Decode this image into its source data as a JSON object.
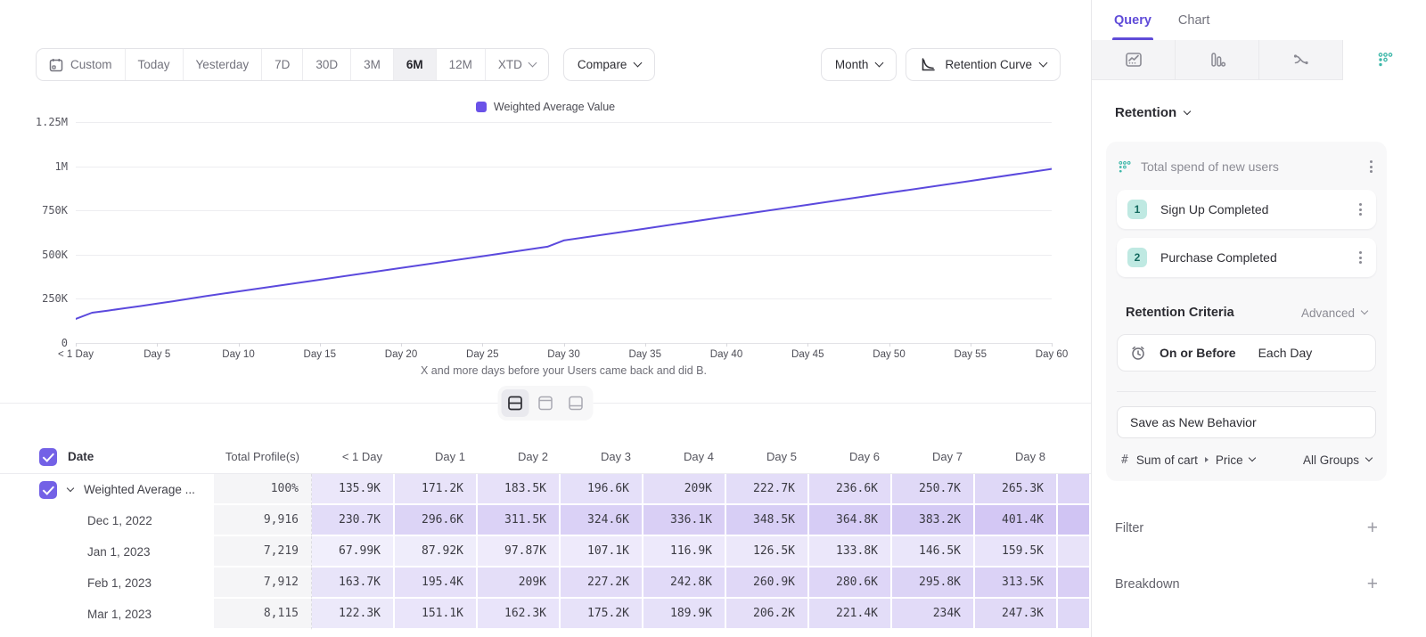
{
  "accent": "#6A52E8",
  "teal": "#3FB8AA",
  "toolbar": {
    "ranges": [
      "Custom",
      "Today",
      "Yesterday",
      "7D",
      "30D",
      "3M",
      "6M",
      "12M",
      "XTD"
    ],
    "active_range": "6M",
    "compare_label": "Compare",
    "granularity_label": "Month",
    "chart_type_label": "Retention Curve"
  },
  "chart_data": {
    "type": "line",
    "legend": [
      "Weighted Average Value"
    ],
    "series": [
      {
        "name": "Weighted Average Value",
        "color": "#5B49DD",
        "points": [
          [
            0,
            135900
          ],
          [
            1,
            171200
          ],
          [
            2,
            183500
          ],
          [
            3,
            196600
          ],
          [
            4,
            209000
          ],
          [
            5,
            222700
          ],
          [
            6,
            236600
          ],
          [
            7,
            250700
          ],
          [
            8,
            265300
          ],
          [
            10,
            292000
          ],
          [
            15,
            358000
          ],
          [
            20,
            425000
          ],
          [
            25,
            491000
          ],
          [
            29,
            545000
          ],
          [
            30,
            580000
          ],
          [
            35,
            647000
          ],
          [
            40,
            715000
          ],
          [
            45,
            782000
          ],
          [
            50,
            850000
          ],
          [
            55,
            917000
          ],
          [
            60,
            985000
          ]
        ]
      }
    ],
    "x_ticks": [
      0,
      5,
      10,
      15,
      20,
      25,
      30,
      35,
      40,
      45,
      50,
      55,
      60
    ],
    "x_tick_labels": [
      "< 1 Day",
      "Day 5",
      "Day 10",
      "Day 15",
      "Day 20",
      "Day 25",
      "Day 30",
      "Day 35",
      "Day 40",
      "Day 45",
      "Day 50",
      "Day 55",
      "Day 60"
    ],
    "y_tick_labels": [
      "0",
      "250K",
      "500K",
      "750K",
      "1M",
      "1.25M"
    ],
    "xlim": [
      0,
      60
    ],
    "ylim": [
      0,
      1250000
    ],
    "grid": true,
    "legend_position": "top-center",
    "xlabel": "X and more days before your Users came back and did B."
  },
  "view_toggle": {
    "options": [
      "split-view",
      "chart-only",
      "table-only"
    ],
    "active_index": 0
  },
  "table": {
    "headers": [
      "Date",
      "Total Profile(s)",
      "< 1 Day",
      "Day 1",
      "Day 2",
      "Day 3",
      "Day 4",
      "Day 5",
      "Day 6",
      "Day 7",
      "Day 8"
    ],
    "header_checkbox_checked": true,
    "rows": [
      {
        "label": "Weighted Average ...",
        "checked": true,
        "expandable": true,
        "total": "100%",
        "values": [
          "135.9K",
          "171.2K",
          "183.5K",
          "196.6K",
          "209K",
          "222.7K",
          "236.6K",
          "250.7K",
          "265.3K"
        ]
      },
      {
        "label": "Dec 1, 2022",
        "total": "9,916",
        "values": [
          "230.7K",
          "296.6K",
          "311.5K",
          "324.6K",
          "336.1K",
          "348.5K",
          "364.8K",
          "383.2K",
          "401.4K"
        ]
      },
      {
        "label": "Jan 1, 2023",
        "total": "7,219",
        "values": [
          "67.99K",
          "87.92K",
          "97.87K",
          "107.1K",
          "116.9K",
          "126.5K",
          "133.8K",
          "146.5K",
          "159.5K"
        ]
      },
      {
        "label": "Feb 1, 2023",
        "total": "7,912",
        "values": [
          "163.7K",
          "195.4K",
          "209K",
          "227.2K",
          "242.8K",
          "260.9K",
          "280.6K",
          "295.8K",
          "313.5K"
        ]
      },
      {
        "label": "Mar 1, 2023",
        "total": "8,115",
        "values": [
          "122.3K",
          "151.1K",
          "162.3K",
          "175.2K",
          "189.9K",
          "206.2K",
          "221.4K",
          "234K",
          "247.3K"
        ]
      }
    ]
  },
  "sidebar": {
    "tabs": [
      {
        "label": "Query",
        "active": true
      },
      {
        "label": "Chart",
        "active": false
      }
    ],
    "icon_tabs": [
      "insights-icon",
      "funnels-icon",
      "flows-icon",
      "retention-icon"
    ],
    "active_icon_tab": 3,
    "section_label": "Retention",
    "behavior": {
      "title": "Total spend of new users",
      "steps": [
        {
          "index": "1",
          "label": "Sign Up Completed"
        },
        {
          "index": "2",
          "label": "Purchase Completed"
        }
      ]
    },
    "criteria": {
      "label": "Retention Criteria",
      "mode": "Advanced",
      "condition": "On or Before",
      "window": "Each Day"
    },
    "save_button_label": "Save as New Behavior",
    "measure": {
      "prefix": "#",
      "event": "Sum of cart",
      "property": "Price",
      "groups": "All Groups"
    },
    "sections": [
      {
        "label": "Filter",
        "action": "+"
      },
      {
        "label": "Breakdown",
        "action": "+"
      }
    ]
  }
}
